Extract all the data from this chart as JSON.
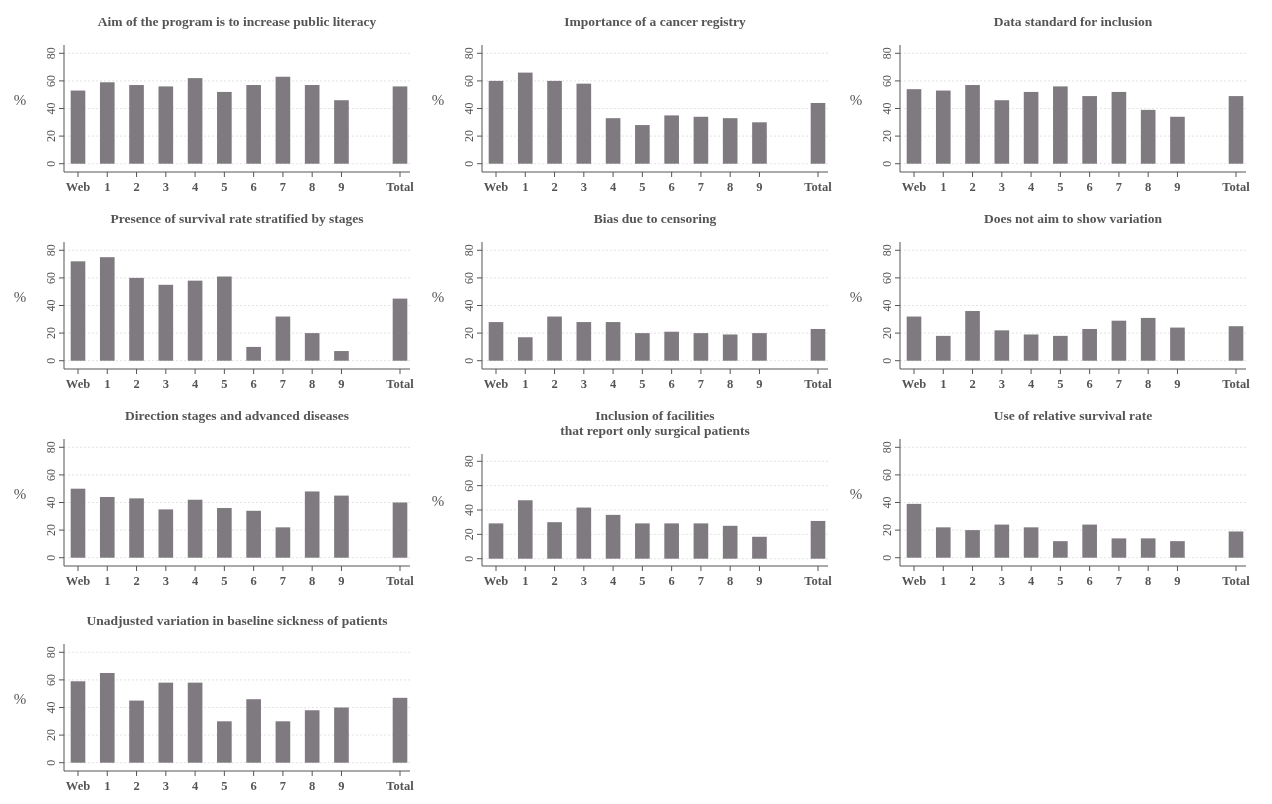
{
  "chart_data": [
    {
      "type": "bar",
      "title": "Aim of the program is to increase public literacy",
      "ylabel": "%",
      "categories": [
        "Web",
        "1",
        "2",
        "3",
        "4",
        "5",
        "6",
        "7",
        "8",
        "9",
        null,
        "Total"
      ],
      "values": [
        53,
        59,
        57,
        56,
        62,
        52,
        57,
        63,
        57,
        46,
        null,
        56
      ],
      "color": "#7f7a80",
      "ylim": [
        -6,
        86
      ],
      "yticks": [
        0,
        20,
        40,
        60,
        80
      ],
      "grid": "y"
    },
    {
      "type": "bar",
      "title": "Importance of a cancer registry",
      "ylabel": "%",
      "categories": [
        "Web",
        "1",
        "2",
        "3",
        "4",
        "5",
        "6",
        "7",
        "8",
        "9",
        null,
        "Total"
      ],
      "values": [
        60,
        66,
        60,
        58,
        33,
        28,
        35,
        34,
        33,
        30,
        null,
        44
      ],
      "color": "#7f7a80",
      "ylim": [
        -6,
        86
      ],
      "yticks": [
        0,
        20,
        40,
        60,
        80
      ],
      "grid": "y"
    },
    {
      "type": "bar",
      "title": "Data standard for inclusion",
      "ylabel": "%",
      "categories": [
        "Web",
        "1",
        "2",
        "3",
        "4",
        "5",
        "6",
        "7",
        "8",
        "9",
        null,
        "Total"
      ],
      "values": [
        54,
        53,
        57,
        46,
        52,
        56,
        49,
        52,
        39,
        34,
        null,
        49
      ],
      "color": "#7f7a80",
      "ylim": [
        -6,
        86
      ],
      "yticks": [
        0,
        20,
        40,
        60,
        80
      ],
      "grid": "y"
    },
    {
      "type": "bar",
      "title": "Presence of survival rate stratified by stages",
      "ylabel": "%",
      "categories": [
        "Web",
        "1",
        "2",
        "3",
        "4",
        "5",
        "6",
        "7",
        "8",
        "9",
        null,
        "Total"
      ],
      "values": [
        72,
        75,
        60,
        55,
        58,
        61,
        10,
        32,
        20,
        7,
        null,
        45
      ],
      "color": "#7f7a80",
      "ylim": [
        -6,
        86
      ],
      "yticks": [
        0,
        20,
        40,
        60,
        80
      ],
      "grid": "y"
    },
    {
      "type": "bar",
      "title": "Bias due to censoring",
      "ylabel": "%",
      "categories": [
        "Web",
        "1",
        "2",
        "3",
        "4",
        "5",
        "6",
        "7",
        "8",
        "9",
        null,
        "Total"
      ],
      "values": [
        28,
        17,
        32,
        28,
        28,
        20,
        21,
        20,
        19,
        20,
        null,
        23
      ],
      "color": "#7f7a80",
      "ylim": [
        -6,
        86
      ],
      "yticks": [
        0,
        20,
        40,
        60,
        80
      ],
      "grid": "y"
    },
    {
      "type": "bar",
      "title": "Does not aim to show variation",
      "ylabel": "%",
      "categories": [
        "Web",
        "1",
        "2",
        "3",
        "4",
        "5",
        "6",
        "7",
        "8",
        "9",
        null,
        "Total"
      ],
      "values": [
        32,
        18,
        36,
        22,
        19,
        18,
        23,
        29,
        31,
        24,
        null,
        25
      ],
      "color": "#7f7a80",
      "ylim": [
        -6,
        86
      ],
      "yticks": [
        0,
        20,
        40,
        60,
        80
      ],
      "grid": "y"
    },
    {
      "type": "bar",
      "title": "Direction stages and advanced diseases",
      "ylabel": "%",
      "categories": [
        "Web",
        "1",
        "2",
        "3",
        "4",
        "5",
        "6",
        "7",
        "8",
        "9",
        null,
        "Total"
      ],
      "values": [
        50,
        44,
        43,
        35,
        42,
        36,
        34,
        22,
        48,
        45,
        null,
        40
      ],
      "color": "#7f7a80",
      "ylim": [
        -6,
        86
      ],
      "yticks": [
        0,
        20,
        40,
        60,
        80
      ],
      "grid": "y"
    },
    {
      "type": "bar",
      "title": "Inclusion of facilities\nthat report only surgical patients",
      "ylabel": "%",
      "categories": [
        "Web",
        "1",
        "2",
        "3",
        "4",
        "5",
        "6",
        "7",
        "8",
        "9",
        null,
        "Total"
      ],
      "values": [
        29,
        48,
        30,
        42,
        36,
        29,
        29,
        29,
        27,
        18,
        null,
        31
      ],
      "color": "#7f7a80",
      "ylim": [
        -6,
        86
      ],
      "yticks": [
        0,
        20,
        40,
        60,
        80
      ],
      "grid": "y"
    },
    {
      "type": "bar",
      "title": "Use of relative survival rate",
      "ylabel": "%",
      "categories": [
        "Web",
        "1",
        "2",
        "3",
        "4",
        "5",
        "6",
        "7",
        "8",
        "9",
        null,
        "Total"
      ],
      "values": [
        39,
        22,
        20,
        24,
        22,
        12,
        24,
        14,
        14,
        12,
        null,
        19
      ],
      "color": "#7f7a80",
      "ylim": [
        -6,
        86
      ],
      "yticks": [
        0,
        20,
        40,
        60,
        80
      ],
      "grid": "y"
    },
    {
      "type": "bar",
      "title": "Unadjusted variation in baseline sickness of patients",
      "ylabel": "%",
      "categories": [
        "Web",
        "1",
        "2",
        "3",
        "4",
        "5",
        "6",
        "7",
        "8",
        "9",
        null,
        "Total"
      ],
      "values": [
        59,
        65,
        45,
        58,
        58,
        30,
        46,
        30,
        38,
        40,
        null,
        47
      ],
      "color": "#7f7a80",
      "ylim": [
        -6,
        86
      ],
      "yticks": [
        0,
        20,
        40,
        60,
        80
      ],
      "grid": "y"
    }
  ]
}
